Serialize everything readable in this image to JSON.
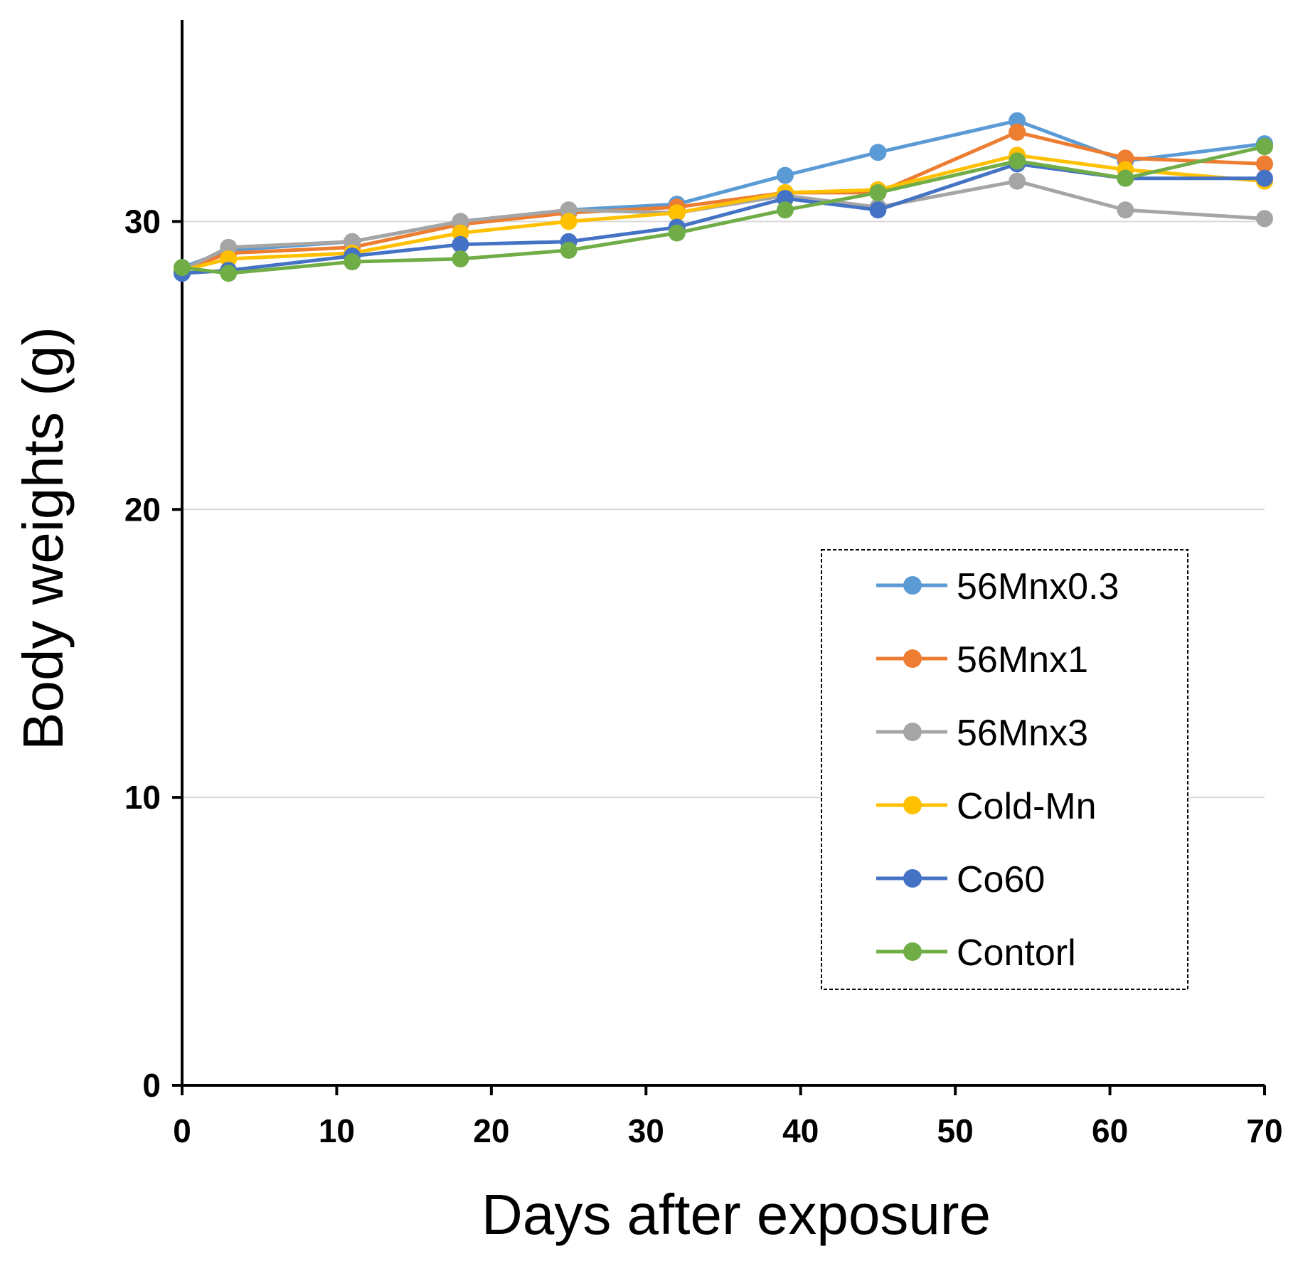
{
  "chart_data": {
    "type": "line",
    "title": "",
    "xlabel": "Days after exposure",
    "ylabel": "Body weights (g)",
    "xlim": [
      0,
      70
    ],
    "ylim": [
      0,
      37
    ],
    "xticks": [
      0,
      10,
      20,
      30,
      40,
      50,
      60,
      70
    ],
    "yticks": [
      0,
      10,
      20,
      30
    ],
    "x_tick_labels": [
      "0",
      "10",
      "20",
      "30",
      "40",
      "50",
      "60",
      "70"
    ],
    "y_tick_labels": [
      "0",
      "10",
      "20",
      "30"
    ],
    "grid": "horizontal",
    "legend_position": "right-center",
    "x": [
      0,
      3,
      11,
      18,
      25,
      32,
      39,
      45,
      54,
      61,
      70
    ],
    "series": [
      {
        "name": "56Mnx0.3",
        "color": "#5B9BD5",
        "values": [
          28.4,
          29.0,
          29.3,
          30.0,
          30.4,
          30.6,
          31.6,
          32.4,
          33.5,
          32.1,
          32.7
        ]
      },
      {
        "name": "56Mnx1",
        "color": "#ED7D31",
        "values": [
          28.3,
          28.9,
          29.1,
          29.9,
          30.3,
          30.5,
          31.0,
          31.0,
          33.1,
          32.2,
          32.0
        ]
      },
      {
        "name": "56Mnx3",
        "color": "#A5A5A5",
        "values": [
          28.3,
          29.1,
          29.3,
          30.0,
          30.4,
          30.3,
          30.9,
          30.5,
          31.4,
          30.4,
          30.1
        ]
      },
      {
        "name": "Cold-Mn",
        "color": "#FFC000",
        "values": [
          28.3,
          28.7,
          28.9,
          29.6,
          30.0,
          30.3,
          31.0,
          31.1,
          32.3,
          31.8,
          31.4
        ]
      },
      {
        "name": "Co60",
        "color": "#4472C4",
        "values": [
          28.2,
          28.3,
          28.8,
          29.2,
          29.3,
          29.8,
          30.8,
          30.4,
          32.0,
          31.5,
          31.5
        ]
      },
      {
        "name": "Contorl",
        "color": "#70AD47",
        "values": [
          28.4,
          28.2,
          28.6,
          28.7,
          29.0,
          29.6,
          30.4,
          31.0,
          32.1,
          31.5,
          32.6
        ]
      }
    ]
  }
}
